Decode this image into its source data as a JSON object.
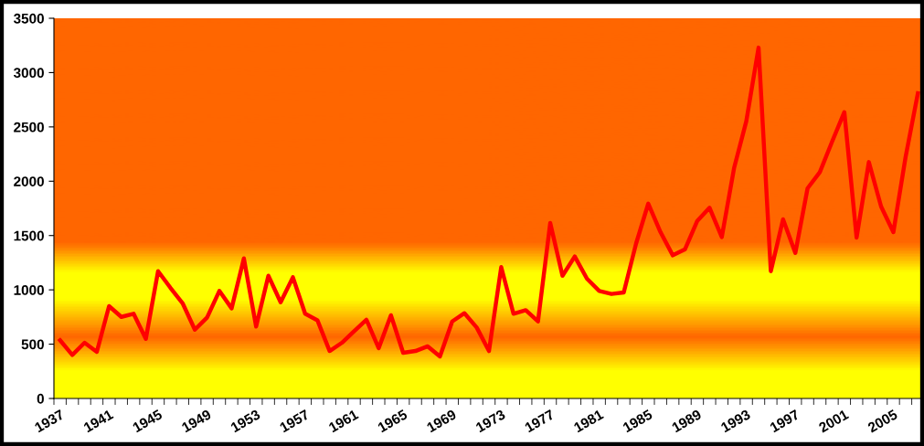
{
  "chart_data": {
    "type": "line",
    "categories": [
      "1937",
      null,
      null,
      null,
      "1941",
      null,
      null,
      null,
      "1945",
      null,
      null,
      null,
      "1949",
      null,
      null,
      null,
      "1953",
      null,
      null,
      null,
      "1957",
      null,
      null,
      null,
      "1961",
      null,
      null,
      null,
      "1965",
      null,
      null,
      null,
      "1969",
      null,
      null,
      null,
      "1973",
      null,
      null,
      null,
      "1977",
      null,
      null,
      null,
      "1981",
      null,
      null,
      null,
      "1985",
      null,
      null,
      null,
      "1989",
      null,
      null,
      null,
      "1993",
      null,
      null,
      null,
      "1997",
      null,
      null,
      null,
      "2001",
      null,
      null,
      null,
      "2005",
      null,
      null
    ],
    "series": [
      {
        "color": "#ff0000",
        "values": [
          536,
          401,
          513,
          429,
          850,
          751,
          780,
          549,
          1172,
          1020,
          877,
          633,
          746,
          990,
          830,
          1290,
          662,
          1130,
          886,
          1116,
          780,
          720,
          437,
          513,
          620,
          724,
          463,
          766,
          421,
          437,
          480,
          387,
          709,
          785,
          653,
          437,
          1209,
          780,
          813,
          709,
          1615,
          1130,
          1307,
          1102,
          990,
          962,
          976,
          1424,
          1794,
          1531,
          1318,
          1374,
          1635,
          1756,
          1486,
          2120,
          2552,
          3230,
          1172,
          1649,
          1340,
          1935,
          2084,
          2364,
          2636,
          1481,
          2176,
          1767,
          1531,
          2224,
          2810
        ]
      }
    ],
    "ylim": [
      0,
      3500
    ],
    "yticks": [
      0,
      500,
      1000,
      1500,
      2000,
      2500,
      3000,
      3500
    ],
    "grid": false,
    "legend": false,
    "marker": "none",
    "line_style": "solid"
  }
}
